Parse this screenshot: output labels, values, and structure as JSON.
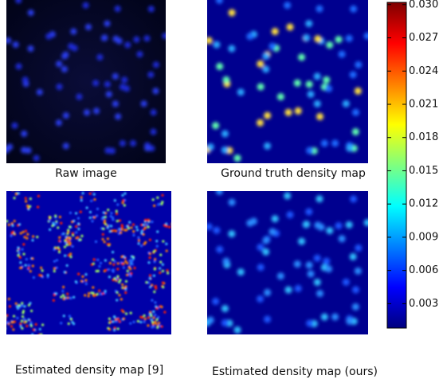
{
  "panels": [
    {
      "caption": "Raw image"
    },
    {
      "caption": "Ground truth density map"
    },
    {
      "caption": "Estimated density map [9]"
    },
    {
      "caption": "Estimated density map (ours)"
    }
  ],
  "colorbar": {
    "lim": [
      0.0008,
      0.0302
    ],
    "ticks": [
      0.003,
      0.006,
      0.009,
      0.012,
      0.015,
      0.018,
      0.021,
      0.024,
      0.027,
      {
        "value": 0.03,
        "label": "0.030"
      }
    ]
  }
}
